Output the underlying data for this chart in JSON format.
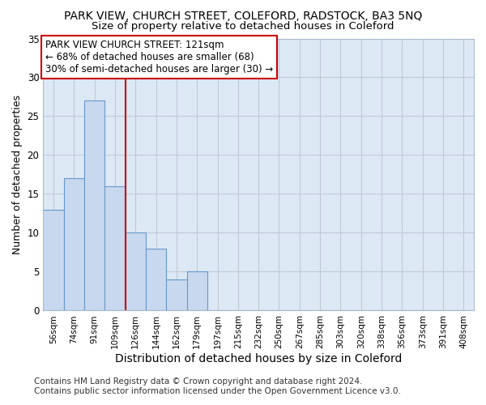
{
  "title": "PARK VIEW, CHURCH STREET, COLEFORD, RADSTOCK, BA3 5NQ",
  "subtitle": "Size of property relative to detached houses in Coleford",
  "xlabel": "Distribution of detached houses by size in Coleford",
  "ylabel": "Number of detached properties",
  "categories": [
    "56sqm",
    "74sqm",
    "91sqm",
    "109sqm",
    "126sqm",
    "144sqm",
    "162sqm",
    "179sqm",
    "197sqm",
    "215sqm",
    "232sqm",
    "250sqm",
    "267sqm",
    "285sqm",
    "303sqm",
    "320sqm",
    "338sqm",
    "356sqm",
    "373sqm",
    "391sqm",
    "408sqm"
  ],
  "values": [
    13,
    17,
    27,
    16,
    10,
    8,
    4,
    5,
    0,
    0,
    0,
    0,
    0,
    0,
    0,
    0,
    0,
    0,
    0,
    0,
    0
  ],
  "bar_color": "#c8d8ee",
  "bar_edge_color": "#6699cc",
  "vline_color": "#cc0000",
  "annotation_lines": [
    "PARK VIEW CHURCH STREET: 121sqm",
    "← 68% of detached houses are smaller (68)",
    "30% of semi-detached houses are larger (30) →"
  ],
  "ylim": [
    0,
    35
  ],
  "yticks": [
    0,
    5,
    10,
    15,
    20,
    25,
    30,
    35
  ],
  "footer": "Contains HM Land Registry data © Crown copyright and database right 2024.\nContains public sector information licensed under the Open Government Licence v3.0.",
  "background_color": "#ffffff",
  "plot_bg_color": "#dde8f5",
  "grid_color": "#c0c8d8",
  "title_fontsize": 10,
  "subtitle_fontsize": 9.5,
  "xlabel_fontsize": 10,
  "ylabel_fontsize": 9,
  "footer_fontsize": 7.5,
  "annot_fontsize": 8.5
}
